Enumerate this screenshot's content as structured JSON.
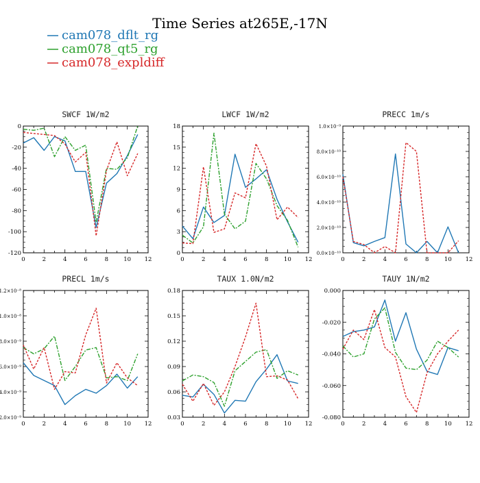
{
  "title": "Time Series at265E,-17N",
  "legend": [
    {
      "label": "cam078_dflt_rg",
      "color": "#1f77b4"
    },
    {
      "label": "cam078_qt5_rg",
      "color": "#2ca02c"
    },
    {
      "label": "cam078_expldiff",
      "color": "#d62728"
    }
  ],
  "chart_data": [
    {
      "type": "line",
      "title": "SWCF   1W/m2",
      "xlim": [
        0,
        12
      ],
      "xticks": [
        "0",
        "2",
        "4",
        "6",
        "8",
        "10",
        "12"
      ],
      "ylim": [
        -120,
        0
      ],
      "yticks": [
        "0",
        "-20",
        "-40",
        "-60",
        "-80",
        "-100",
        "-120"
      ],
      "x": [
        0,
        1,
        2,
        3,
        4,
        5,
        6,
        7,
        8,
        9,
        10,
        11
      ],
      "series": [
        {
          "name": "cam078_dflt_rg",
          "values": [
            -16,
            -11,
            -23,
            -10,
            -14,
            -43,
            -43,
            -96,
            -54,
            -45,
            -28,
            -8
          ]
        },
        {
          "name": "cam078_qt5_rg",
          "values": [
            -3,
            -4,
            -2,
            -29,
            -10,
            -23,
            -18,
            -91,
            -40,
            -41,
            -30,
            0
          ]
        },
        {
          "name": "cam078_expldiff",
          "values": [
            -6,
            -7,
            -8,
            -9,
            -17,
            -34,
            -25,
            -104,
            -42,
            -15,
            -47,
            -26
          ]
        }
      ]
    },
    {
      "type": "line",
      "title": "LWCF   1W/m2",
      "xlim": [
        0,
        12
      ],
      "xticks": [
        "0",
        "2",
        "4",
        "6",
        "8",
        "10",
        "12"
      ],
      "ylim": [
        0,
        18
      ],
      "yticks": [
        "0",
        "3",
        "6",
        "9",
        "12",
        "15",
        "18"
      ],
      "x": [
        0,
        1,
        2,
        3,
        4,
        5,
        6,
        7,
        8,
        9,
        10,
        11
      ],
      "series": [
        {
          "name": "cam078_dflt_rg",
          "values": [
            3.8,
            2.0,
            6.5,
            4.3,
            5.3,
            14.0,
            9.3,
            10.5,
            11.8,
            7.6,
            4.4,
            1.5
          ]
        },
        {
          "name": "cam078_qt5_rg",
          "values": [
            2.5,
            1.4,
            3.7,
            17.0,
            5.5,
            3.4,
            4.5,
            12.7,
            10.5,
            6.7,
            4.6,
            0.8
          ]
        },
        {
          "name": "cam078_expldiff",
          "values": [
            1.4,
            1.3,
            12.2,
            2.9,
            3.4,
            8.5,
            7.8,
            15.5,
            12.3,
            4.7,
            6.5,
            5.0
          ]
        }
      ]
    },
    {
      "type": "line",
      "title": "PRECC   1m/s",
      "xlim": [
        0,
        12
      ],
      "xticks": [
        "0",
        "2",
        "4",
        "6",
        "8",
        "10",
        "12"
      ],
      "ylim": [
        0,
        1e-09
      ],
      "yticks": [
        "0.0×10⁻¹⁰",
        "2.0×10⁻¹⁰",
        "4.0×10⁻¹⁰",
        "6.0×10⁻¹⁰",
        "8.0×10⁻¹⁰",
        "1.0×10⁻⁹"
      ],
      "x": [
        0,
        1,
        2,
        3,
        4,
        5,
        6,
        7,
        8,
        9,
        10,
        11
      ],
      "series": [
        {
          "name": "cam078_dflt_rg",
          "values": [
            6.2e-10,
            8e-11,
            5.5e-11,
            9e-11,
            1.2e-10,
            7.8e-10,
            7e-11,
            0,
            9e-11,
            0,
            2.05e-10,
            0
          ]
        },
        {
          "name": "cam078_expldiff",
          "values": [
            6e-10,
            9e-11,
            6.5e-11,
            0,
            5e-11,
            0,
            8.7e-10,
            8e-10,
            0,
            0,
            0,
            9.5e-11
          ]
        }
      ]
    },
    {
      "type": "line",
      "title": "PRECL   1m/s",
      "xlim": [
        0,
        12
      ],
      "xticks": [
        "0",
        "2",
        "4",
        "6",
        "8",
        "10",
        "12"
      ],
      "ylim": [
        2e-09,
        1.2e-08
      ],
      "yticks": [
        "2.0×10⁻⁹",
        "4.0×10⁻⁹",
        "6.0×10⁻⁹",
        "8.0×10⁻⁹",
        "1.0×10⁻⁸",
        "1.2×10⁻⁸"
      ],
      "x": [
        0,
        1,
        2,
        3,
        4,
        5,
        6,
        7,
        8,
        9,
        10,
        11
      ],
      "series": [
        {
          "name": "cam078_dflt_rg",
          "values": [
            6.3e-09,
            5.3e-09,
            4.9e-09,
            4.5e-09,
            3e-09,
            3.7e-09,
            4.2e-09,
            3.9e-09,
            4.5e-09,
            5.4e-09,
            4.3e-09,
            5.2e-09
          ]
        },
        {
          "name": "cam078_qt5_rg",
          "values": [
            7.5e-09,
            7e-09,
            7.4e-09,
            8.4e-09,
            4.9e-09,
            6e-09,
            7.3e-09,
            7.5e-09,
            5.1e-09,
            5.2e-09,
            4.9e-09,
            7e-09
          ]
        },
        {
          "name": "cam078_expldiff",
          "values": [
            7.7e-09,
            5.8e-09,
            7.5e-09,
            4.2e-09,
            5.6e-09,
            5.5e-09,
            8.5e-09,
            1.06e-08,
            4.7e-09,
            6.3e-09,
            5.1e-09,
            4.5e-09
          ]
        }
      ]
    },
    {
      "type": "line",
      "title": "TAUX   1.0N/m2",
      "xlim": [
        0,
        12
      ],
      "xticks": [
        "0",
        "2",
        "4",
        "6",
        "8",
        "10",
        "12"
      ],
      "ylim": [
        0.03,
        0.18
      ],
      "yticks": [
        "0.03",
        "0.06",
        "0.09",
        "0.12",
        "0.15",
        "0.18"
      ],
      "x": [
        0,
        1,
        2,
        3,
        4,
        5,
        6,
        7,
        8,
        9,
        10,
        11
      ],
      "series": [
        {
          "name": "cam078_dflt_rg",
          "values": [
            0.056,
            0.054,
            0.069,
            0.057,
            0.035,
            0.05,
            0.049,
            0.072,
            0.087,
            0.104,
            0.073,
            0.07
          ]
        },
        {
          "name": "cam078_qt5_rg",
          "values": [
            0.073,
            0.08,
            0.078,
            0.071,
            0.043,
            0.085,
            0.096,
            0.107,
            0.11,
            0.076,
            0.085,
            0.08
          ]
        },
        {
          "name": "cam078_expldiff",
          "values": [
            0.069,
            0.049,
            0.07,
            0.044,
            0.06,
            0.09,
            0.125,
            0.165,
            0.078,
            0.079,
            0.074,
            0.052
          ]
        }
      ]
    },
    {
      "type": "line",
      "title": "TAUY   1N/m2",
      "xlim": [
        0,
        12
      ],
      "xticks": [
        "0",
        "2",
        "4",
        "6",
        "8",
        "10",
        "12"
      ],
      "ylim": [
        -0.08,
        0.0
      ],
      "yticks": [
        "0.000",
        "-0.020",
        "-0.040",
        "-0.060",
        "-0.080"
      ],
      "x": [
        0,
        1,
        2,
        3,
        4,
        5,
        6,
        7,
        8,
        9,
        10,
        11
      ],
      "series": [
        {
          "name": "cam078_dflt_rg",
          "values": [
            -0.029,
            -0.026,
            -0.025,
            -0.023,
            -0.006,
            -0.032,
            -0.014,
            -0.037,
            -0.051,
            -0.053,
            -0.036,
            -0.038
          ]
        },
        {
          "name": "cam078_qt5_rg",
          "values": [
            -0.035,
            -0.042,
            -0.04,
            -0.018,
            -0.011,
            -0.039,
            -0.049,
            -0.05,
            -0.044,
            -0.032,
            -0.036,
            -0.042
          ]
        },
        {
          "name": "cam078_expldiff",
          "values": [
            -0.037,
            -0.025,
            -0.031,
            -0.012,
            -0.036,
            -0.042,
            -0.067,
            -0.077,
            -0.052,
            -0.04,
            -0.032,
            -0.025
          ]
        }
      ]
    }
  ]
}
